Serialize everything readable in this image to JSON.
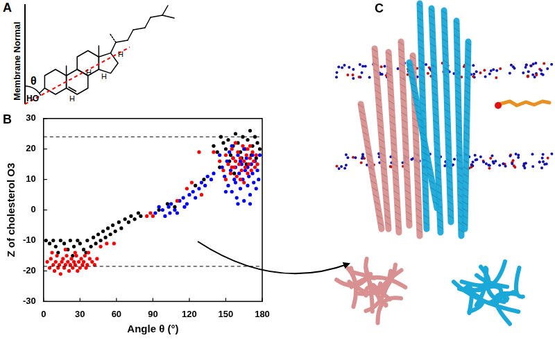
{
  "chart_data": {
    "type": "scatter",
    "x_label": "Angle θ (°)",
    "y_label": "Z of cholesterol O3",
    "xlim": [
      0,
      180
    ],
    "xticks": [
      0,
      30,
      60,
      90,
      120,
      150,
      180
    ],
    "ylim": [
      -30,
      30
    ],
    "yticks": [
      -30,
      -20,
      -10,
      0,
      10,
      20,
      30
    ],
    "grid": false,
    "reference_lines": [
      {
        "y": 24,
        "line_style": "dashed"
      },
      {
        "y": -18.5,
        "line_style": "dashed"
      }
    ],
    "series": [
      {
        "color": "#ff0000",
        "x": [
          3,
          5,
          6,
          8,
          9,
          10,
          11,
          12,
          13,
          14,
          15,
          16,
          17,
          18,
          19,
          20,
          21,
          22,
          23,
          24,
          25,
          26,
          27,
          28,
          29,
          30,
          31,
          32,
          33,
          34,
          35,
          36,
          38,
          40,
          42,
          44,
          7,
          18,
          26,
          37,
          47,
          52,
          58,
          85,
          88,
          90,
          110,
          118,
          122,
          130,
          128,
          140,
          145,
          148,
          150,
          152,
          154,
          155,
          156,
          157,
          158,
          159,
          160,
          161,
          162,
          163,
          164,
          165,
          166,
          167,
          168,
          169,
          170,
          171,
          172,
          173,
          174,
          175,
          176,
          165,
          158,
          170,
          162,
          168,
          155,
          150
        ],
        "values": [
          -17,
          -19,
          -16,
          -18,
          -20,
          -17,
          -15,
          -19,
          -18,
          -21,
          -17,
          -16,
          -19,
          -18,
          -15,
          -17,
          -20,
          -18,
          -16,
          -19,
          -17,
          -18,
          -15,
          -20,
          -17,
          -19,
          -16,
          -18,
          -17,
          -15,
          -19,
          -18,
          -16,
          -17,
          -18,
          -16,
          -14,
          -13,
          -14,
          -14,
          -12,
          -11,
          -11,
          -2,
          -1,
          -2,
          3,
          7,
          9,
          5,
          19,
          19,
          16,
          13,
          18,
          15,
          12,
          20,
          17,
          14,
          16,
          11,
          19,
          15,
          17,
          13,
          21,
          16,
          14,
          18,
          12,
          15,
          17,
          13,
          19,
          16,
          14,
          18,
          15,
          9,
          22,
          21,
          10,
          20,
          14,
          10
        ]
      },
      {
        "color": "#0000ff",
        "x": [
          92,
          95,
          98,
          100,
          103,
          105,
          108,
          110,
          112,
          115,
          118,
          120,
          123,
          125,
          128,
          130,
          133,
          135,
          138,
          140,
          104,
          116,
          145,
          147,
          149,
          151,
          152,
          153,
          154,
          155,
          156,
          157,
          158,
          159,
          160,
          161,
          162,
          163,
          164,
          165,
          166,
          167,
          168,
          169,
          170,
          171,
          172,
          173,
          174,
          175,
          176,
          177,
          178,
          160,
          170,
          165,
          150,
          155,
          168,
          172,
          162,
          158
        ],
        "values": [
          -1,
          1,
          0,
          -2,
          1,
          2,
          0,
          -1,
          3,
          4,
          2,
          5,
          6,
          4,
          7,
          9,
          8,
          11,
          10,
          12,
          -1,
          1,
          18,
          14,
          11,
          16,
          8,
          19,
          13,
          6,
          17,
          10,
          14,
          4,
          18,
          12,
          7,
          15,
          10,
          3,
          13,
          17,
          8,
          11,
          5,
          15,
          12,
          9,
          16,
          7,
          13,
          10,
          18,
          2,
          2,
          20,
          6,
          21,
          14,
          18,
          16,
          9
        ]
      },
      {
        "color": "#000000",
        "x": [
          2,
          5,
          8,
          10,
          14,
          17,
          20,
          22,
          25,
          28,
          30,
          33,
          36,
          39,
          41,
          43,
          45,
          47,
          49,
          51,
          53,
          55,
          57,
          59,
          62,
          64,
          67,
          70,
          72,
          75,
          78,
          80,
          12,
          24,
          35,
          95,
          102,
          108,
          125,
          132,
          140,
          143,
          146,
          148,
          150,
          152,
          154,
          156,
          158,
          160,
          162,
          164,
          166,
          168,
          170,
          172,
          174,
          176,
          178,
          153,
          163,
          171,
          157,
          167,
          175,
          145
        ],
        "values": [
          -10,
          -11,
          -10,
          -12,
          -10,
          -11,
          -13,
          -10,
          -12,
          -10,
          -11,
          -13,
          -10,
          -12,
          -9,
          -11,
          -8,
          -10,
          -7,
          -9,
          -6,
          -8,
          -5,
          -7,
          -4,
          -6,
          -3,
          -4,
          -2,
          -3,
          -1,
          -2,
          -14,
          -15,
          -14,
          0,
          2,
          1,
          8,
          10,
          21,
          19,
          24,
          22,
          20,
          23,
          18,
          21,
          25,
          22,
          19,
          24,
          20,
          23,
          26,
          21,
          24,
          22,
          20,
          16,
          17,
          18,
          12,
          15,
          17,
          14
        ]
      }
    ]
  },
  "panels": {
    "A": {
      "label": "A",
      "axis_label": "Membrane Normal",
      "angle_label": "θ",
      "hydroxyl_label": "HO",
      "hydrogen_labels": [
        "H",
        "H",
        "H",
        "H"
      ]
    },
    "B": {
      "label": "B"
    },
    "C": {
      "label": "C"
    }
  }
}
